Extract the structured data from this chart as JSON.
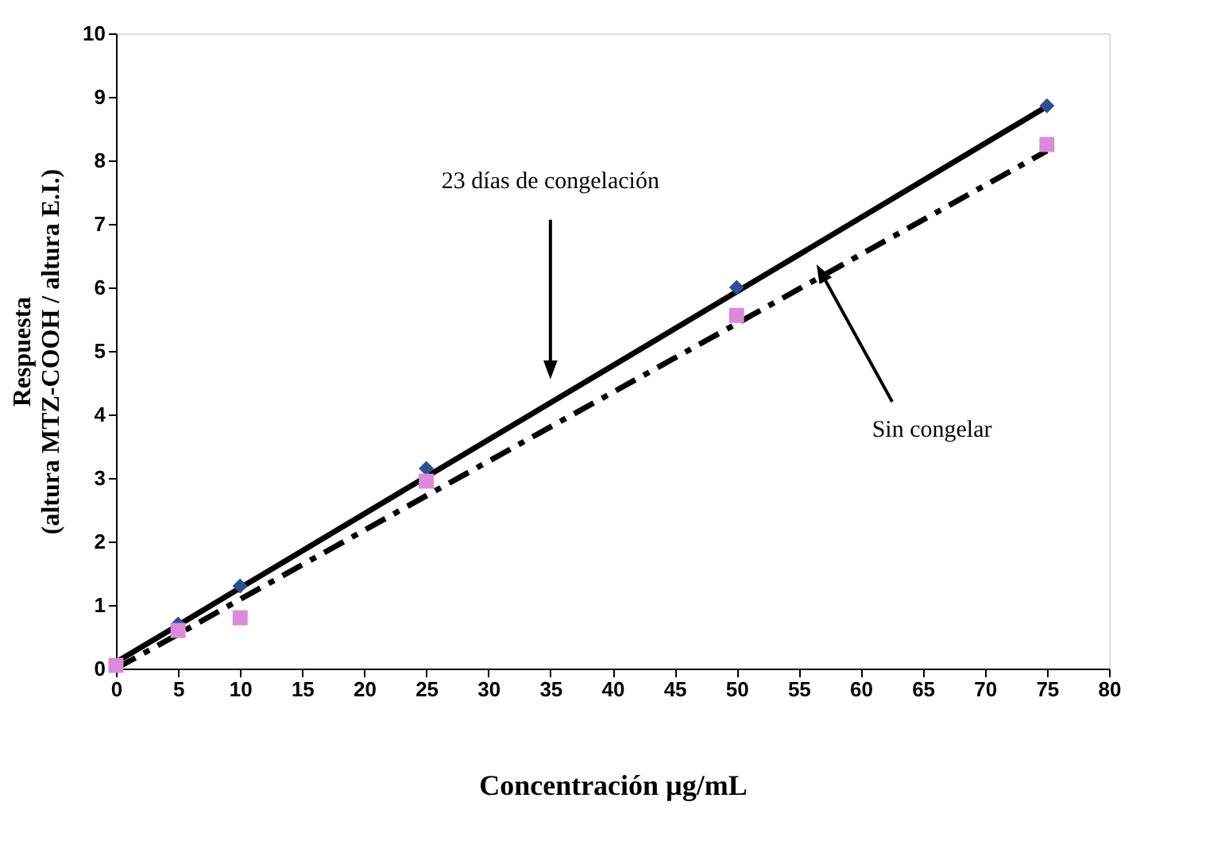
{
  "chart_data": {
    "type": "scatter",
    "xlabel": "Concentración µg/mL",
    "ylabel": "Respuesta\n(altura MTZ-COOH / altura E.I.)",
    "x": [
      0,
      5,
      10,
      25,
      50,
      75
    ],
    "series": [
      {
        "type": "line",
        "line_style": "solid",
        "color": "#000000",
        "values": [
          0.1,
          0.68,
          1.27,
          3.02,
          5.93,
          8.85
        ]
      },
      {
        "type": "line",
        "line_style": "dashed",
        "color": "#000000",
        "values": [
          0.0,
          0.54,
          1.09,
          2.72,
          5.43,
          8.15
        ]
      },
      {
        "marker": "diamond",
        "color": "#2f4f8f",
        "values": [
          null,
          0.7,
          1.3,
          3.15,
          6.0,
          8.86
        ]
      },
      {
        "marker": "square",
        "color": "#d98bd9",
        "values": [
          0.05,
          0.6,
          0.8,
          2.95,
          5.56,
          8.25
        ]
      }
    ],
    "annotations": [
      {
        "text": "23 días de congelación",
        "x": 35,
        "y": 4.74
      },
      {
        "text": "Sin congelar",
        "x": 56.9,
        "y": 6.2
      }
    ],
    "xlim": [
      0,
      80
    ],
    "xticks": [
      0,
      5,
      10,
      15,
      20,
      25,
      30,
      35,
      40,
      45,
      50,
      55,
      60,
      65,
      70,
      75,
      80
    ],
    "ylim": [
      0,
      10
    ],
    "yticks": [
      0,
      1,
      2,
      3,
      4,
      5,
      6,
      7,
      8,
      9,
      10
    ],
    "grid": false
  }
}
